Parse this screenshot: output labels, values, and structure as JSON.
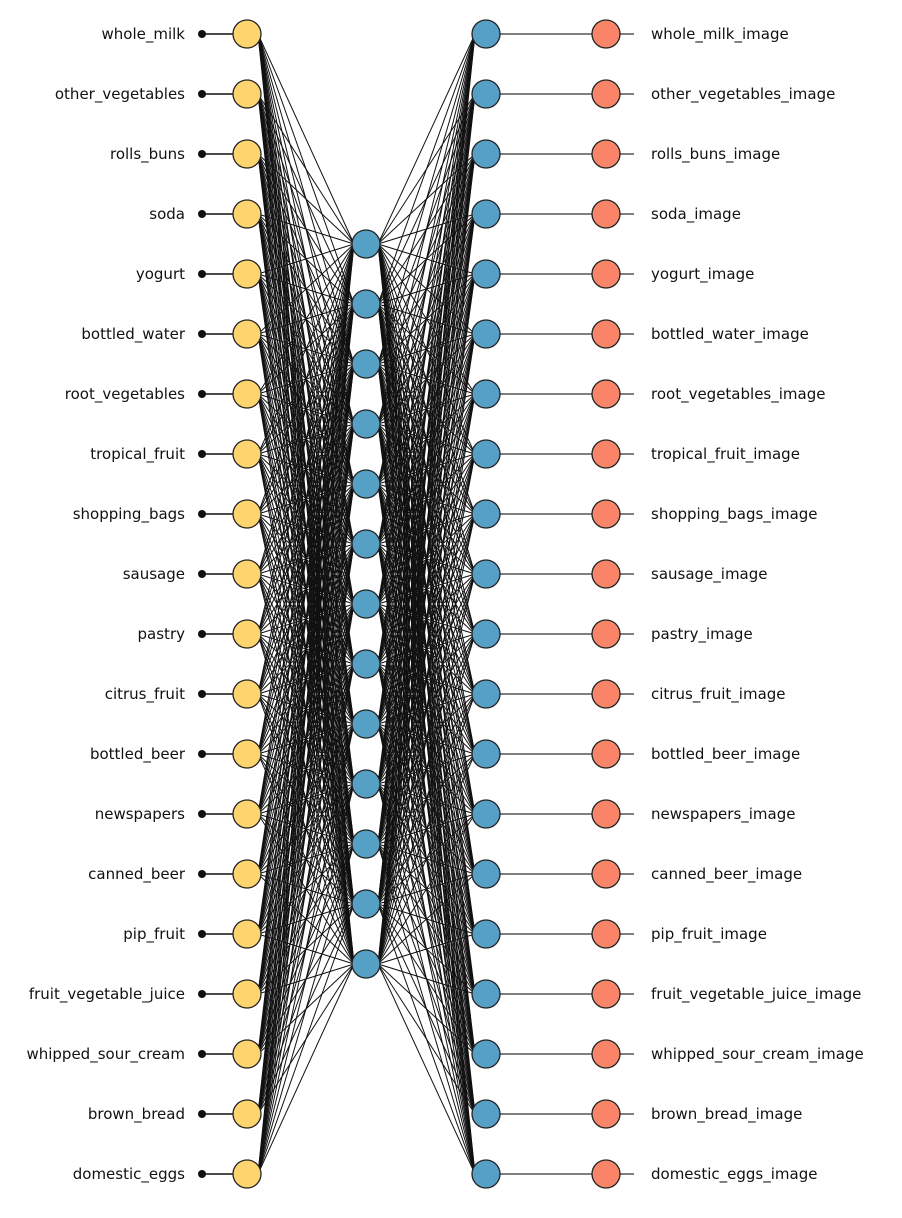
{
  "input_labels": [
    "whole_milk",
    "other_vegetables",
    "rolls_buns",
    "soda",
    "yogurt",
    "bottled_water",
    "root_vegetables",
    "tropical_fruit",
    "shopping_bags",
    "sausage",
    "pastry",
    "citrus_fruit",
    "bottled_beer",
    "newspapers",
    "canned_beer",
    "pip_fruit",
    "fruit_vegetable_juice",
    "whipped_sour_cream",
    "brown_bread",
    "domestic_eggs"
  ],
  "output_labels": [
    "whole_milk_image",
    "other_vegetables_image",
    "rolls_buns_image",
    "soda_image",
    "yogurt_image",
    "bottled_water_image",
    "root_vegetables_image",
    "tropical_fruit_image",
    "shopping_bags_image",
    "sausage_image",
    "pastry_image",
    "citrus_fruit_image",
    "bottled_beer_image",
    "newspapers_image",
    "canned_beer_image",
    "pip_fruit_image",
    "fruit_vegetable_juice_image",
    "whipped_sour_cream_image",
    "brown_bread_image",
    "domestic_eggs_image"
  ],
  "hidden_node_count": 13,
  "colors": {
    "input_node": "#FED46E",
    "hidden_node": "#56A0C5",
    "output_node": "#F98468",
    "edge": "#111111",
    "output_link": "#7F7F7F",
    "stroke": "#222222"
  }
}
